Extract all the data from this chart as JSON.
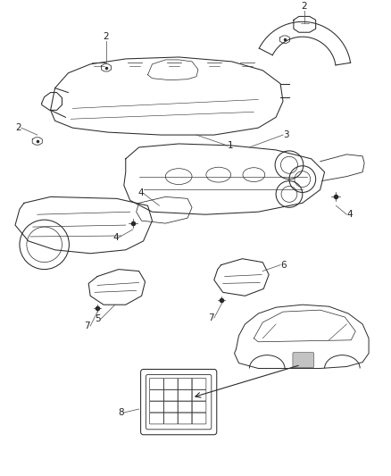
{
  "bg_color": "#ffffff",
  "fig_width": 4.38,
  "fig_height": 5.33,
  "dpi": 100,
  "line_color": "#2a2a2a",
  "label_color": "#222222",
  "label_fontsize": 7,
  "lw": 0.75
}
